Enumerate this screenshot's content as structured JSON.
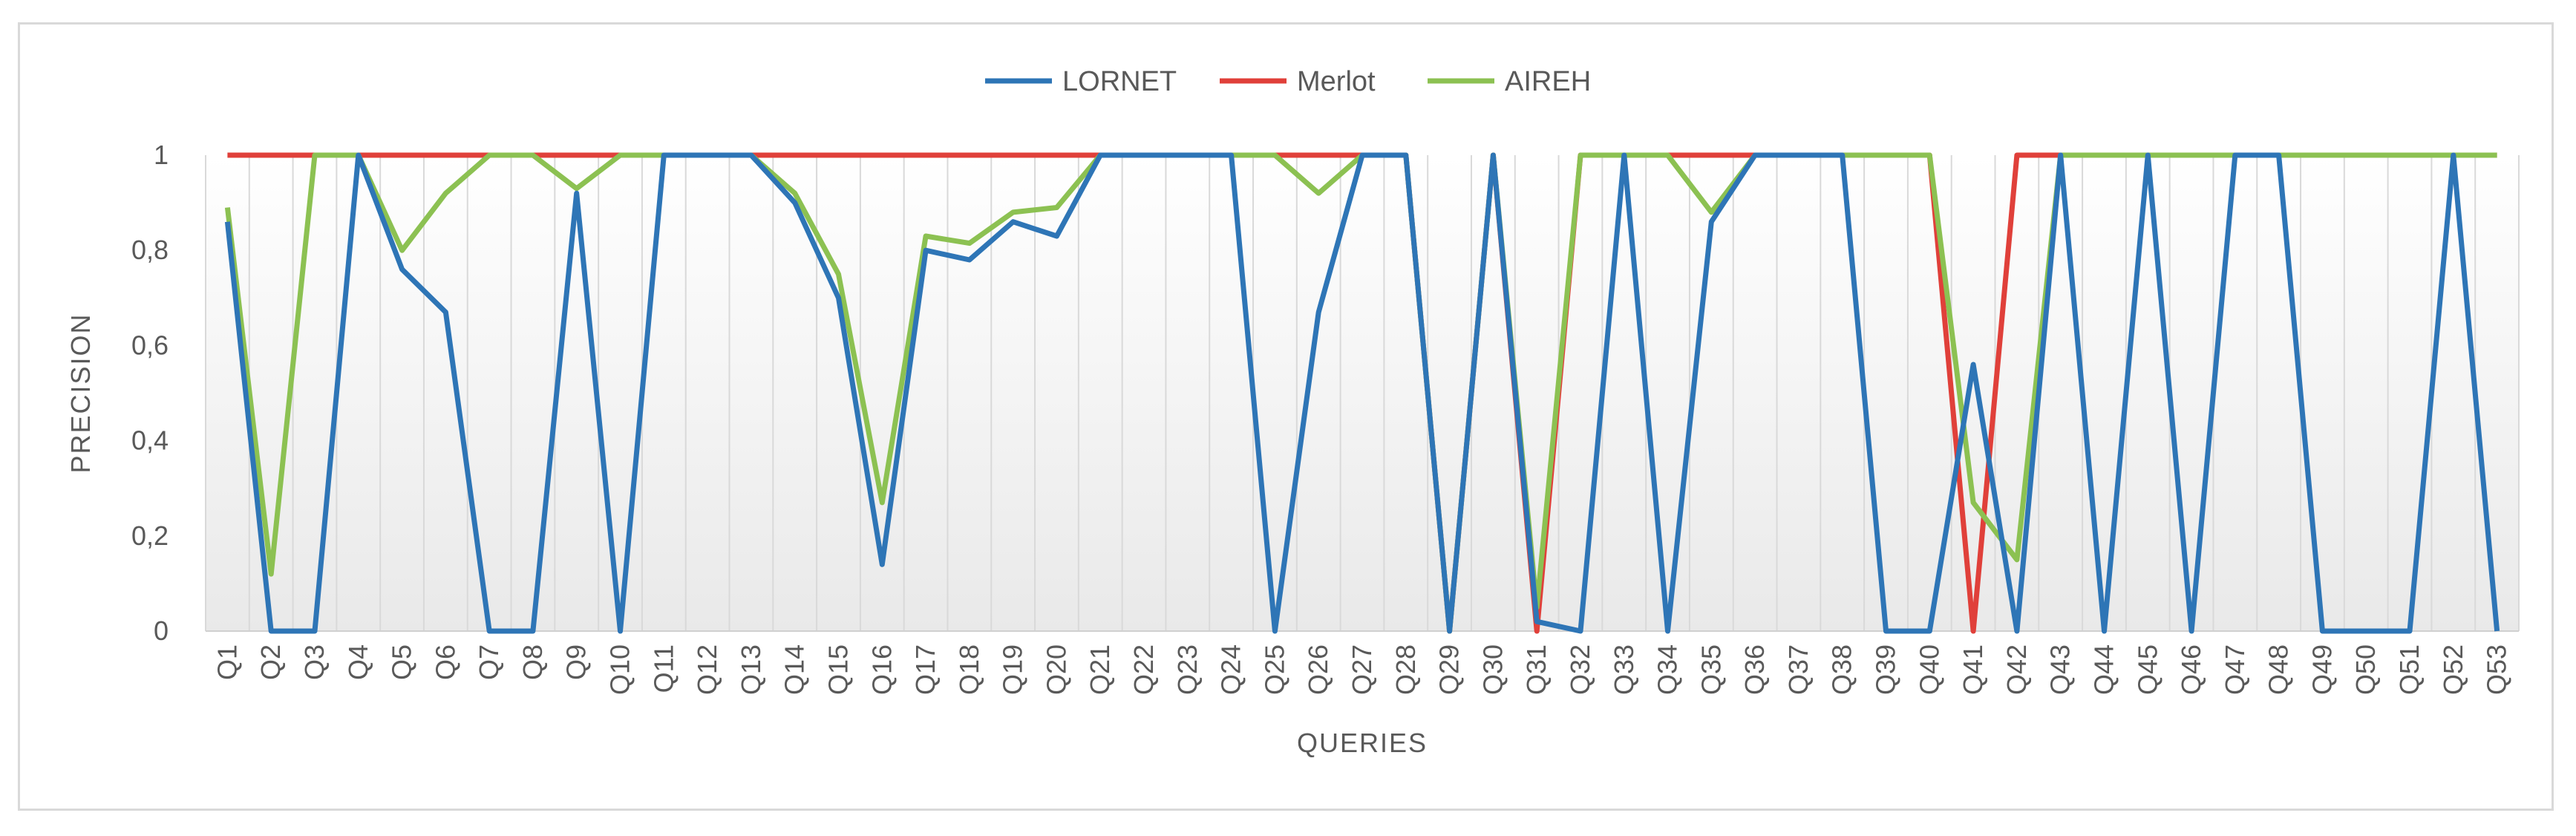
{
  "chart_data": {
    "type": "line",
    "title": "",
    "xlabel": "QUERIES",
    "ylabel": "PRECISION",
    "ylim": [
      0,
      1
    ],
    "yticks": [
      "0",
      "0,2",
      "0,4",
      "0,6",
      "0,8",
      "1"
    ],
    "grid": "vertical gridlines at each category",
    "background": "white-to-light-gray gradient plot area",
    "legend_position": "top",
    "categories": [
      "Q1",
      "Q2",
      "Q3",
      "Q4",
      "Q5",
      "Q6",
      "Q7",
      "Q8",
      "Q9",
      "Q10",
      "Q11",
      "Q12",
      "Q13",
      "Q14",
      "Q15",
      "Q16",
      "Q17",
      "Q18",
      "Q19",
      "Q20",
      "Q21",
      "Q22",
      "Q23",
      "Q24",
      "Q25",
      "Q26",
      "Q27",
      "Q28",
      "Q29",
      "Q30",
      "Q31",
      "Q32",
      "Q33",
      "Q34",
      "Q35",
      "Q36",
      "Q37",
      "Q38",
      "Q39",
      "Q40",
      "Q41",
      "Q42",
      "Q43",
      "Q44",
      "Q45",
      "Q46",
      "Q47",
      "Q48",
      "Q49",
      "Q50",
      "Q51",
      "Q52",
      "Q53"
    ],
    "series": [
      {
        "name": "LORNET",
        "color": "#2e75b6",
        "values": [
          0.86,
          0,
          0,
          1,
          0.76,
          0.67,
          0,
          0,
          0.92,
          0,
          1,
          1,
          1,
          0.9,
          0.7,
          0.14,
          0.8,
          0.78,
          0.86,
          0.83,
          1,
          1,
          1,
          1,
          0,
          0.67,
          1,
          1,
          0,
          1,
          0.02,
          0,
          1,
          0,
          0.86,
          1,
          1,
          1,
          0,
          0,
          0.56,
          0,
          1,
          0,
          1,
          0,
          1,
          1,
          0,
          0,
          0,
          1,
          0
        ]
      },
      {
        "name": "Merlot",
        "color": "#e0403a",
        "values": [
          1,
          1,
          1,
          1,
          1,
          1,
          1,
          1,
          1,
          1,
          1,
          1,
          1,
          1,
          1,
          1,
          1,
          1,
          1,
          1,
          1,
          1,
          1,
          1,
          1,
          1,
          1,
          1,
          0,
          1,
          0,
          1,
          1,
          1,
          1,
          1,
          1,
          1,
          1,
          1,
          0,
          1,
          1,
          1,
          1,
          1,
          1,
          1,
          1,
          1,
          1,
          1,
          1
        ]
      },
      {
        "name": "AIREH",
        "color": "#8cc152",
        "values": [
          0.89,
          0.12,
          1,
          1,
          0.8,
          0.92,
          1,
          1,
          0.93,
          1,
          1,
          1,
          1,
          0.92,
          0.75,
          0.27,
          0.83,
          0.815,
          0.88,
          0.89,
          1,
          1,
          1,
          1,
          1,
          0.92,
          1,
          1,
          0,
          1,
          0.05,
          1,
          1,
          1,
          0.88,
          1,
          1,
          1,
          1,
          1,
          0.27,
          0.15,
          1,
          1,
          1,
          1,
          1,
          1,
          1,
          1,
          1,
          1,
          1
        ]
      }
    ]
  }
}
